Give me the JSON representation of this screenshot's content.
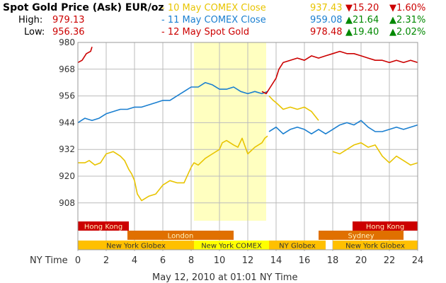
{
  "header": {
    "title": "Spot Gold Price (Ask) EUR/oz",
    "high_label": "High:",
    "high_value": "979.13",
    "low_label": "Low:",
    "low_value": "956.36",
    "legend": [
      {
        "label": "- 10 May COMEX Close",
        "value": "937.43",
        "change": "▼15.20",
        "pct": "▼1.60%",
        "color": "#e8c400",
        "chg_color": "#cc0000"
      },
      {
        "label": "- 11 May COMEX Close",
        "value": "959.08",
        "change": "▲21.64",
        "pct": "▲2.31%",
        "color": "#1a7fd0",
        "chg_color": "#008800"
      },
      {
        "label": "- 12 May Spot Gold",
        "value": "978.48",
        "change": "▲19.40",
        "pct": "▲2.02%",
        "color": "#cc0000",
        "chg_color": "#008800"
      }
    ]
  },
  "sessions": [
    {
      "name": "Hong Kong",
      "start": 0,
      "end": 3.6,
      "color": "#cc0000"
    },
    {
      "name": "Hong Kong",
      "start": 19.4,
      "end": 24,
      "color": "#cc0000"
    },
    {
      "name": "London",
      "start": 3.5,
      "end": 11,
      "color": "#e07000"
    },
    {
      "name": "Sydney",
      "start": 17,
      "end": 23,
      "color": "#e07000"
    },
    {
      "name": "New York Globex",
      "start": 0,
      "end": 8.2,
      "color": "#ffc000"
    },
    {
      "name": "New York COMEX",
      "start": 8.2,
      "end": 13.5,
      "color": "#ffff00"
    },
    {
      "name": "NY Globex",
      "start": 13.5,
      "end": 17.5,
      "color": "#ffc000"
    },
    {
      "name": "New York Globex",
      "start": 18,
      "end": 24,
      "color": "#ffc000"
    }
  ],
  "footer": {
    "timestamp": "May 12, 2010 at 01:01 NY Time"
  },
  "chart_data": {
    "type": "line",
    "xlabel": "NY Time",
    "xlim": [
      0,
      24
    ],
    "ylim": [
      900,
      980
    ],
    "xticks": [
      0,
      2,
      4,
      6,
      8,
      10,
      12,
      14,
      16,
      18,
      20,
      22,
      24
    ],
    "yticks": [
      908,
      920,
      932,
      944,
      956,
      968,
      980
    ],
    "highlight": [
      8.2,
      13.3
    ],
    "series": [
      {
        "name": "10 May COMEX Close",
        "color": "#e8c400",
        "segments": [
          [
            [
              0,
              926
            ],
            [
              0.5,
              926
            ],
            [
              0.8,
              927
            ],
            [
              1.2,
              925
            ],
            [
              1.6,
              926
            ],
            [
              2.0,
              930
            ],
            [
              2.5,
              931
            ],
            [
              3.0,
              929
            ],
            [
              3.3,
              927
            ],
            [
              3.6,
              923
            ],
            [
              3.8,
              921
            ],
            [
              4.0,
              918
            ],
            [
              4.2,
              912
            ],
            [
              4.5,
              909
            ],
            [
              5.0,
              911
            ],
            [
              5.5,
              912
            ],
            [
              6.0,
              916
            ],
            [
              6.5,
              918
            ],
            [
              7.0,
              917
            ],
            [
              7.5,
              917
            ],
            [
              8.0,
              924
            ],
            [
              8.2,
              926
            ],
            [
              8.5,
              925
            ],
            [
              9.0,
              928
            ],
            [
              9.5,
              930
            ],
            [
              10.0,
              932
            ],
            [
              10.2,
              935
            ],
            [
              10.5,
              936
            ],
            [
              11.0,
              934
            ],
            [
              11.3,
              933
            ],
            [
              11.6,
              937
            ],
            [
              12.0,
              930
            ],
            [
              12.5,
              933
            ],
            [
              13.0,
              935
            ],
            [
              13.2,
              937
            ],
            [
              13.4,
              938
            ]
          ],
          [
            [
              13.5,
              956
            ],
            [
              13.8,
              954
            ],
            [
              14.0,
              953
            ],
            [
              14.5,
              950
            ],
            [
              15.0,
              951
            ],
            [
              15.5,
              950
            ],
            [
              16.0,
              951
            ],
            [
              16.5,
              949
            ],
            [
              17.0,
              945
            ]
          ],
          [
            [
              18.0,
              931
            ],
            [
              18.5,
              930
            ],
            [
              19.0,
              932
            ],
            [
              19.5,
              934
            ],
            [
              20.0,
              935
            ],
            [
              20.5,
              933
            ],
            [
              21.0,
              934
            ],
            [
              21.5,
              929
            ],
            [
              22.0,
              926
            ],
            [
              22.5,
              929
            ],
            [
              23.0,
              927
            ],
            [
              23.5,
              925
            ],
            [
              24.0,
              926
            ]
          ]
        ]
      },
      {
        "name": "11 May COMEX Close",
        "color": "#1a7fd0",
        "segments": [
          [
            [
              0,
              944
            ],
            [
              0.5,
              946
            ],
            [
              1.0,
              945
            ],
            [
              1.5,
              946
            ],
            [
              2.0,
              948
            ],
            [
              2.5,
              949
            ],
            [
              3.0,
              950
            ],
            [
              3.5,
              950
            ],
            [
              4.0,
              951
            ],
            [
              4.5,
              951
            ],
            [
              5.0,
              952
            ],
            [
              5.5,
              953
            ],
            [
              6.0,
              954
            ],
            [
              6.5,
              954
            ],
            [
              7.0,
              956
            ],
            [
              7.5,
              958
            ],
            [
              8.0,
              960
            ],
            [
              8.5,
              960
            ],
            [
              9.0,
              962
            ],
            [
              9.5,
              961
            ],
            [
              10.0,
              959
            ],
            [
              10.5,
              959
            ],
            [
              11.0,
              960
            ],
            [
              11.5,
              958
            ],
            [
              12.0,
              957
            ],
            [
              12.5,
              958
            ],
            [
              13.0,
              957
            ],
            [
              13.4,
              958
            ]
          ],
          [
            [
              13.5,
              940
            ],
            [
              14.0,
              942
            ],
            [
              14.5,
              939
            ],
            [
              15.0,
              941
            ],
            [
              15.5,
              942
            ],
            [
              16.0,
              941
            ],
            [
              16.5,
              939
            ],
            [
              17.0,
              941
            ],
            [
              17.5,
              939
            ],
            [
              18.0,
              941
            ],
            [
              18.5,
              943
            ],
            [
              19.0,
              944
            ],
            [
              19.5,
              943
            ],
            [
              20.0,
              945
            ],
            [
              20.5,
              942
            ],
            [
              21.0,
              940
            ],
            [
              21.5,
              940
            ],
            [
              22.0,
              941
            ],
            [
              22.5,
              942
            ],
            [
              23.0,
              941
            ],
            [
              23.5,
              942
            ],
            [
              24.0,
              943
            ]
          ]
        ]
      },
      {
        "name": "12 May Spot Gold",
        "color": "#cc0000",
        "segments": [
          [
            [
              0,
              971
            ],
            [
              0.3,
              972
            ],
            [
              0.6,
              975
            ],
            [
              0.9,
              976
            ],
            [
              1.0,
              978
            ]
          ],
          [
            [
              13.0,
              958
            ],
            [
              13.3,
              957
            ],
            [
              13.6,
              960
            ],
            [
              14.0,
              964
            ],
            [
              14.2,
              968
            ],
            [
              14.5,
              971
            ],
            [
              15.0,
              972
            ],
            [
              15.5,
              973
            ],
            [
              16.0,
              972
            ],
            [
              16.5,
              974
            ],
            [
              17.0,
              973
            ],
            [
              17.5,
              974
            ],
            [
              18.0,
              975
            ],
            [
              18.5,
              976
            ],
            [
              19.0,
              975
            ],
            [
              19.5,
              975
            ],
            [
              20.0,
              974
            ],
            [
              20.5,
              973
            ],
            [
              21.0,
              972
            ],
            [
              21.5,
              972
            ],
            [
              22.0,
              971
            ],
            [
              22.5,
              972
            ],
            [
              23.0,
              971
            ],
            [
              23.5,
              972
            ],
            [
              24.0,
              971
            ]
          ]
        ]
      }
    ]
  }
}
